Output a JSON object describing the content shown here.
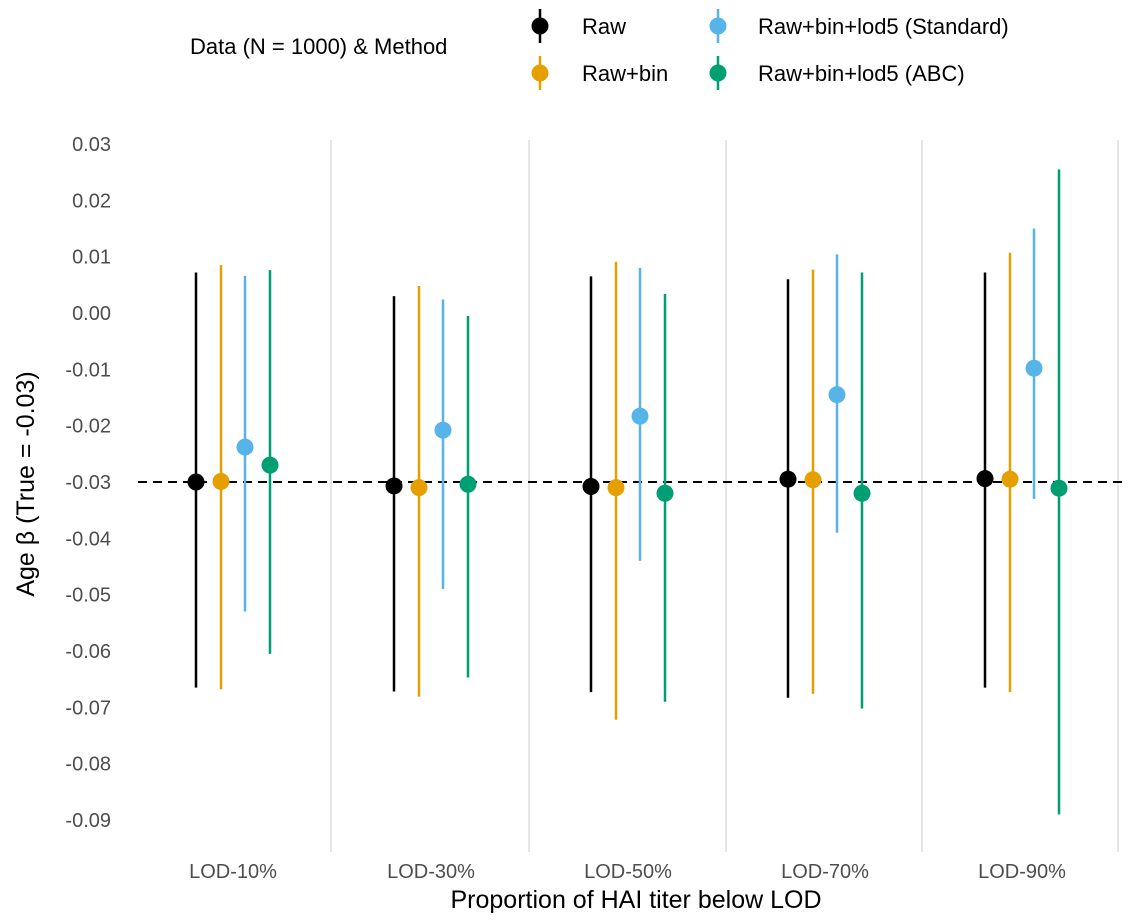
{
  "chart_data": {
    "type": "scatter",
    "xlabel": "Proportion of HAI titer below LOD",
    "ylabel": "Age β (True = -0.03)",
    "categories": [
      "LOD-10%",
      "LOD-30%",
      "LOD-50%",
      "LOD-70%",
      "LOD-90%"
    ],
    "ylim": [
      -0.095,
      0.035
    ],
    "yticks": [
      0.03,
      0.02,
      0.01,
      0.0,
      -0.01,
      -0.02,
      -0.03,
      -0.04,
      -0.05,
      -0.06,
      -0.07,
      -0.08,
      -0.09
    ],
    "ytick_labels": [
      "0.03",
      "0.02",
      "0.01",
      "0.00",
      "-0.01",
      "-0.02",
      "-0.03",
      "-0.04",
      "-0.05",
      "-0.06",
      "-0.07",
      "-0.08",
      "-0.09"
    ],
    "reference_line": -0.03,
    "grid": "vertical only",
    "legend": {
      "title": "Data (N = 1000) & Method",
      "position": "top",
      "entries": [
        "Raw",
        "Raw+bin",
        "Raw+bin+lod5 (Standard)",
        "Raw+bin+lod5 (ABC)"
      ]
    },
    "series": [
      {
        "name": "Raw",
        "color": "#000000",
        "estimates": [
          -0.03,
          -0.0307,
          -0.0308,
          -0.0295,
          -0.0294
        ],
        "lower": [
          -0.0665,
          -0.0672,
          -0.0673,
          -0.0683,
          -0.0665
        ],
        "upper": [
          0.0072,
          0.003,
          0.0065,
          0.006,
          0.0072
        ]
      },
      {
        "name": "Raw+bin",
        "color": "#E69F00",
        "estimates": [
          -0.0299,
          -0.031,
          -0.031,
          -0.0296,
          -0.0295
        ],
        "lower": [
          -0.0668,
          -0.0681,
          -0.0722,
          -0.0676,
          -0.0673
        ],
        "upper": [
          0.0085,
          0.0048,
          0.0091,
          0.0077,
          0.0107
        ]
      },
      {
        "name": "Raw+bin+lod5 (Standard)",
        "color": "#56B4E9",
        "estimates": [
          -0.0238,
          -0.0208,
          -0.0183,
          -0.0145,
          -0.0098
        ],
        "lower": [
          -0.053,
          -0.049,
          -0.044,
          -0.039,
          -0.033
        ],
        "upper": [
          0.0066,
          0.0024,
          0.008,
          0.0104,
          0.015
        ]
      },
      {
        "name": "Raw+bin+lod5 (ABC)",
        "color": "#009E73",
        "estimates": [
          -0.027,
          -0.0304,
          -0.032,
          -0.032,
          -0.0311
        ],
        "lower": [
          -0.0605,
          -0.0647,
          -0.069,
          -0.0702,
          -0.089
        ],
        "upper": [
          0.0076,
          -0.0005,
          0.0034,
          0.0072,
          0.0255
        ]
      }
    ]
  }
}
